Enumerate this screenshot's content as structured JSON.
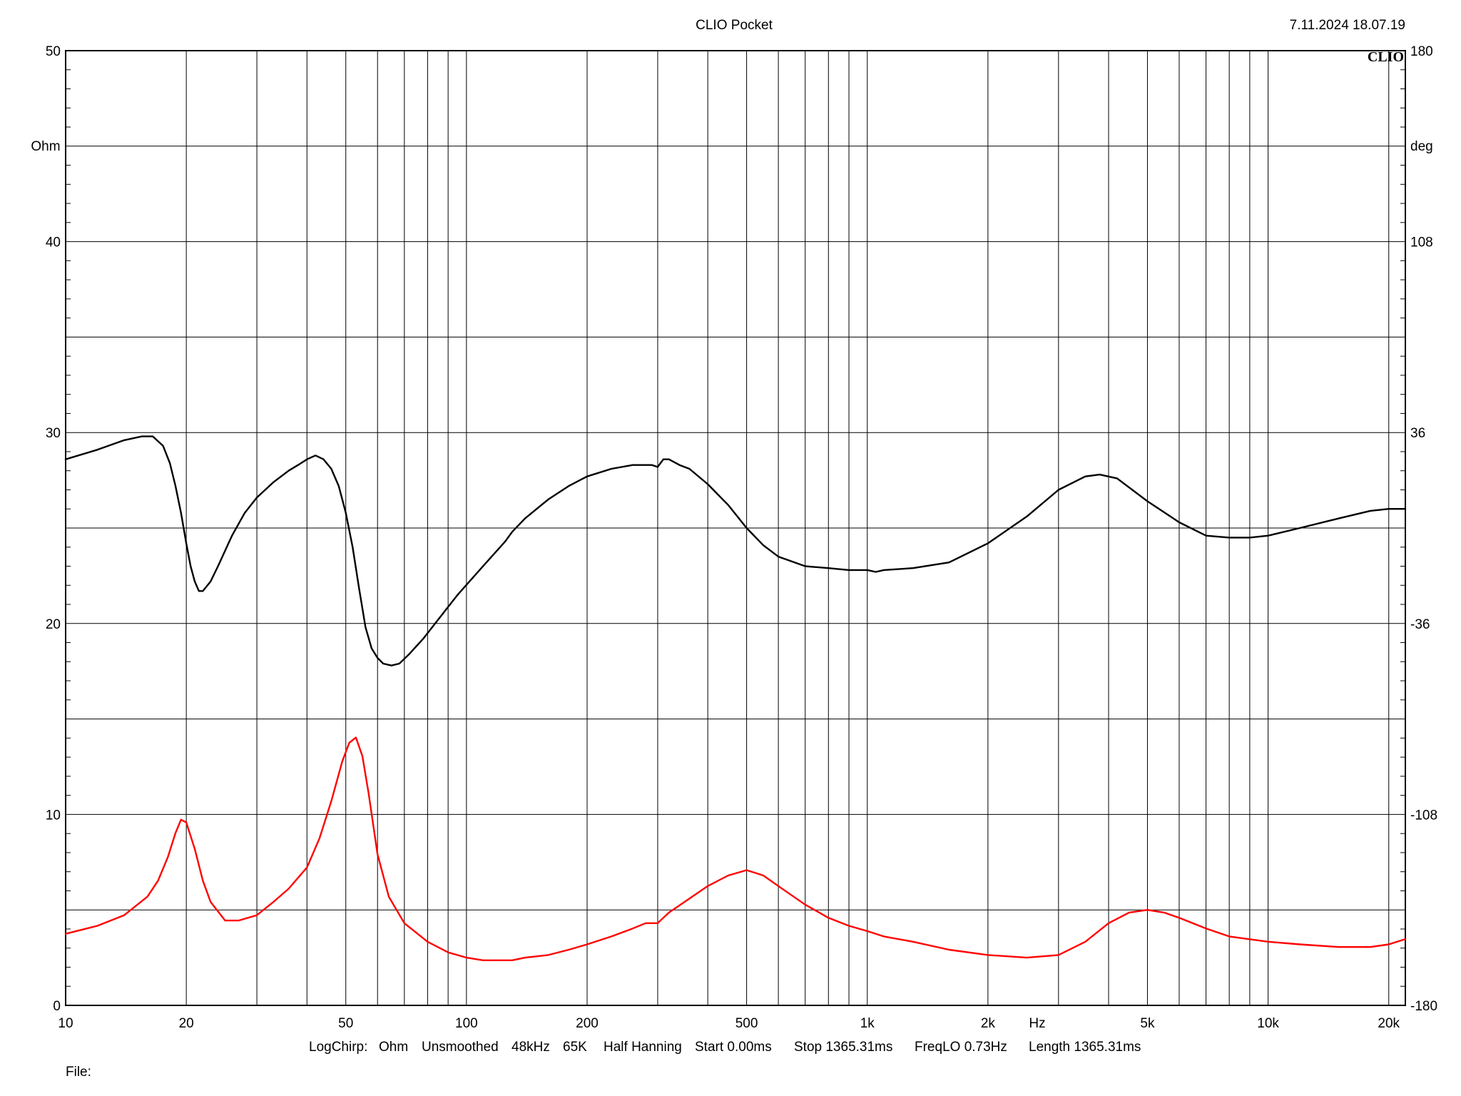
{
  "header": {
    "title": "CLIO Pocket",
    "timestamp": "7.11.2024 18.07.19",
    "logo_text": "CLIO"
  },
  "footer": {
    "params": [
      "LogChirp:",
      "Ohm",
      "Unsmoothed",
      "48kHz",
      "65K",
      "Half Hanning",
      "Start 0.00ms",
      "Stop 1365.31ms",
      "FreqLO 0.73Hz",
      "Length 1365.31ms"
    ],
    "file_label": "File:"
  },
  "chart_data": {
    "type": "line",
    "x_scale": "log",
    "xlim": [
      10,
      22000
    ],
    "ylim": [
      0,
      50
    ],
    "y2lim": [
      -180,
      180
    ],
    "ylabel": "Ohm",
    "y2label": "deg",
    "xunit": "Hz",
    "grid": true,
    "x_tick_labels": [
      {
        "value": 10,
        "label": "10"
      },
      {
        "value": 20,
        "label": "20"
      },
      {
        "value": 50,
        "label": "50"
      },
      {
        "value": 100,
        "label": "100"
      },
      {
        "value": 200,
        "label": "200"
      },
      {
        "value": 500,
        "label": "500"
      },
      {
        "value": 1000,
        "label": "1k"
      },
      {
        "value": 2000,
        "label": "2k"
      },
      {
        "value": 5000,
        "label": "5k"
      },
      {
        "value": 10000,
        "label": "10k"
      },
      {
        "value": 20000,
        "label": "20k"
      }
    ],
    "y_tick_labels": [
      {
        "value": 0,
        "label": "0"
      },
      {
        "value": 10,
        "label": "10"
      },
      {
        "value": 20,
        "label": "20"
      },
      {
        "value": 30,
        "label": "30"
      },
      {
        "value": 40,
        "label": "40"
      },
      {
        "value": 50,
        "label": "50"
      }
    ],
    "y2_tick_labels": [
      {
        "value": -180,
        "label": "-180"
      },
      {
        "value": -108,
        "label": "-108"
      },
      {
        "value": -36,
        "label": "-36"
      },
      {
        "value": 36,
        "label": "36"
      },
      {
        "value": 108,
        "label": "108"
      },
      {
        "value": 180,
        "label": "180"
      }
    ],
    "series": [
      {
        "color": "#000000",
        "axis": "left",
        "x": [
          10,
          12,
          14,
          15.5,
          16.5,
          17.5,
          18.2,
          18.8,
          19.4,
          20,
          20.5,
          21,
          21.5,
          22,
          23,
          24,
          26,
          28,
          30,
          33,
          36,
          38,
          40,
          42,
          44,
          46,
          48,
          50,
          52,
          54,
          56,
          58,
          60,
          62,
          65,
          68,
          72,
          78,
          85,
          95,
          110,
          125,
          130,
          140,
          160,
          180,
          200,
          230,
          260,
          290,
          300,
          310,
          320,
          340,
          360,
          400,
          450,
          500,
          550,
          600,
          700,
          800,
          900,
          1000,
          1050,
          1100,
          1300,
          1600,
          2000,
          2500,
          3000,
          3500,
          3800,
          4200,
          5000,
          6000,
          7000,
          8000,
          9000,
          10000,
          12000,
          15000,
          18000,
          20000,
          22000
        ],
        "y": [
          28.6,
          29.1,
          29.6,
          29.8,
          29.8,
          29.3,
          28.4,
          27.2,
          25.8,
          24.2,
          23.0,
          22.2,
          21.7,
          21.7,
          22.2,
          23.0,
          24.6,
          25.8,
          26.6,
          27.4,
          28.0,
          28.3,
          28.6,
          28.8,
          28.6,
          28.1,
          27.2,
          25.8,
          24.0,
          21.8,
          19.8,
          18.7,
          18.2,
          17.9,
          17.8,
          17.9,
          18.4,
          19.2,
          20.2,
          21.5,
          23.0,
          24.3,
          24.8,
          25.5,
          26.5,
          27.2,
          27.7,
          28.1,
          28.3,
          28.3,
          28.2,
          28.6,
          28.6,
          28.3,
          28.1,
          27.3,
          26.2,
          25.0,
          24.1,
          23.5,
          23.0,
          22.9,
          22.8,
          22.8,
          22.7,
          22.8,
          22.9,
          23.2,
          24.2,
          25.6,
          27.0,
          27.7,
          27.8,
          27.6,
          26.4,
          25.3,
          24.6,
          24.5,
          24.5,
          24.6,
          25.0,
          25.5,
          25.9,
          26.0,
          26.0
        ]
      },
      {
        "color": "#ff0000",
        "axis": "right",
        "x": [
          10,
          12,
          14,
          16,
          17,
          18,
          18.8,
          19.4,
          20,
          21,
          22,
          23,
          25,
          27,
          30,
          33,
          36,
          40,
          43,
          46,
          49,
          51,
          53,
          55,
          57,
          60,
          64,
          70,
          80,
          90,
          100,
          110,
          120,
          130,
          140,
          160,
          180,
          200,
          230,
          260,
          280,
          300,
          320,
          350,
          400,
          450,
          500,
          550,
          600,
          700,
          800,
          900,
          1000,
          1100,
          1300,
          1600,
          2000,
          2500,
          3000,
          3500,
          4000,
          4500,
          5000,
          5500,
          6000,
          7000,
          8000,
          10000,
          12000,
          15000,
          18000,
          20000,
          22000
        ],
        "y": [
          -153,
          -150,
          -146,
          -139,
          -133,
          -124,
          -115,
          -110,
          -111,
          -121,
          -133,
          -141,
          -148,
          -148,
          -146,
          -141,
          -136,
          -128,
          -117,
          -103,
          -88,
          -81,
          -79,
          -86,
          -100,
          -123,
          -139,
          -149,
          -156,
          -160,
          -162,
          -163,
          -163,
          -163,
          -162,
          -161,
          -159,
          -157,
          -154,
          -151,
          -149,
          -149,
          -145,
          -141,
          -135,
          -131,
          -129,
          -131,
          -135,
          -142,
          -147,
          -150,
          -152,
          -154,
          -156,
          -159,
          -161,
          -162,
          -161,
          -156,
          -149,
          -145,
          -144,
          -145,
          -147,
          -151,
          -154,
          -156,
          -157,
          -158,
          -158,
          -157,
          -155
        ]
      }
    ]
  }
}
